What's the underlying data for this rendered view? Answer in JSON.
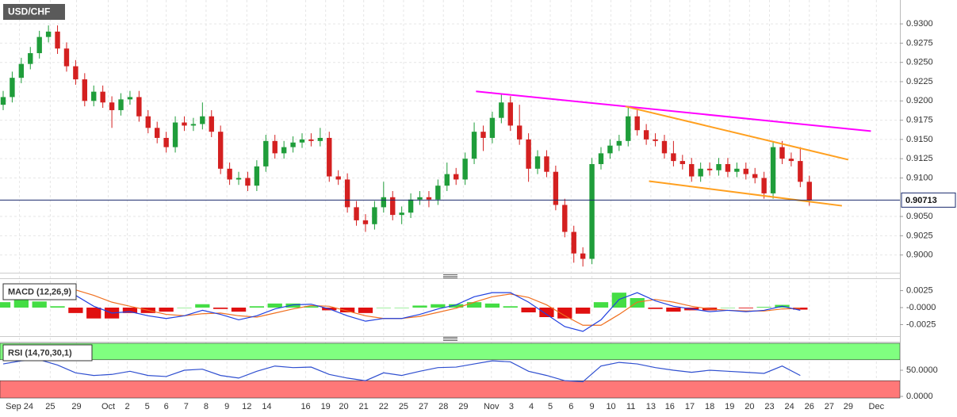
{
  "chart_data": [
    {
      "type": "candlestick",
      "title": "USD/CHF",
      "up_color": "#1f9d3a",
      "down_color": "#d42020",
      "xlim": [
        -0.35,
        99.0
      ],
      "ylim": [
        0.8977,
        0.9331
      ],
      "yticks": [
        {
          "value": 0.93,
          "label": "0.9300"
        },
        {
          "value": 0.9275,
          "label": "0.9275"
        },
        {
          "value": 0.925,
          "label": "0.9250"
        },
        {
          "value": 0.9225,
          "label": "0.9225"
        },
        {
          "value": 0.92,
          "label": "0.9200"
        },
        {
          "value": 0.9175,
          "label": "0.9175"
        },
        {
          "value": 0.915,
          "label": "0.9150"
        },
        {
          "value": 0.9125,
          "label": "0.9125"
        },
        {
          "value": 0.91,
          "label": "0.9100"
        },
        {
          "value": 0.905,
          "label": "0.9050"
        },
        {
          "value": 0.9025,
          "label": "0.9025"
        },
        {
          "value": 0.9,
          "label": "0.9000"
        }
      ],
      "xticks": [
        {
          "value": 1.8,
          "label": "Sep 24"
        },
        {
          "value": 5.2,
          "label": "25"
        },
        {
          "value": 8.1,
          "label": "29"
        },
        {
          "value": 11.6,
          "label": "Oct"
        },
        {
          "value": 13.7,
          "label": "2"
        },
        {
          "value": 15.9,
          "label": "5"
        },
        {
          "value": 18.0,
          "label": "6"
        },
        {
          "value": 20.2,
          "label": "7"
        },
        {
          "value": 22.4,
          "label": "8"
        },
        {
          "value": 24.7,
          "label": "9"
        },
        {
          "value": 26.9,
          "label": "12"
        },
        {
          "value": 29.1,
          "label": "14"
        },
        {
          "value": 33.4,
          "label": "16"
        },
        {
          "value": 35.6,
          "label": "19"
        },
        {
          "value": 37.6,
          "label": "20"
        },
        {
          "value": 39.8,
          "label": "21"
        },
        {
          "value": 42.0,
          "label": "22"
        },
        {
          "value": 44.2,
          "label": "25"
        },
        {
          "value": 46.4,
          "label": "27"
        },
        {
          "value": 48.6,
          "label": "28"
        },
        {
          "value": 50.8,
          "label": "29"
        },
        {
          "value": 53.9,
          "label": "Nov"
        },
        {
          "value": 56.1,
          "label": "3"
        },
        {
          "value": 58.3,
          "label": "4"
        },
        {
          "value": 60.4,
          "label": "5"
        },
        {
          "value": 62.7,
          "label": "6"
        },
        {
          "value": 65.0,
          "label": "9"
        },
        {
          "value": 67.1,
          "label": "10"
        },
        {
          "value": 69.3,
          "label": "11"
        },
        {
          "value": 71.5,
          "label": "13"
        },
        {
          "value": 73.6,
          "label": "16"
        },
        {
          "value": 75.8,
          "label": "17"
        },
        {
          "value": 78.0,
          "label": "18"
        },
        {
          "value": 80.2,
          "label": "19"
        },
        {
          "value": 82.4,
          "label": "20"
        },
        {
          "value": 84.6,
          "label": "23"
        },
        {
          "value": 86.8,
          "label": "24"
        },
        {
          "value": 89.0,
          "label": "26"
        },
        {
          "value": 91.2,
          "label": "27"
        },
        {
          "value": 93.3,
          "label": "29"
        },
        {
          "value": 96.4,
          "label": "Dec"
        }
      ],
      "last_price": 0.90713,
      "last_price_color": "#1a2a6c",
      "trendlines": [
        {
          "color": "#ff00ff",
          "x": [
            52.2,
            95.8
          ],
          "y": [
            0.92124,
            0.91608
          ]
        },
        {
          "color": "#ffa020",
          "x": [
            68.7,
            93.3
          ],
          "y": [
            0.91928,
            0.91237
          ]
        },
        {
          "color": "#ffa020",
          "x": [
            71.3,
            92.6
          ],
          "y": [
            0.90959,
            0.90639
          ]
        }
      ],
      "candles": [
        [
          0.9195,
          0.9213,
          0.9188,
          0.9205
        ],
        [
          0.9205,
          0.9238,
          0.9198,
          0.923
        ],
        [
          0.923,
          0.9256,
          0.9223,
          0.9248
        ],
        [
          0.9248,
          0.927,
          0.9241,
          0.9262
        ],
        [
          0.9262,
          0.9291,
          0.9255,
          0.9283
        ],
        [
          0.9283,
          0.9298,
          0.9276,
          0.929
        ],
        [
          0.929,
          0.9298,
          0.9261,
          0.9268
        ],
        [
          0.9268,
          0.9276,
          0.9238,
          0.9245
        ],
        [
          0.9245,
          0.9253,
          0.9221,
          0.9228
        ],
        [
          0.9228,
          0.9236,
          0.9193,
          0.92
        ],
        [
          0.92,
          0.922,
          0.9193,
          0.9212
        ],
        [
          0.9212,
          0.922,
          0.9191,
          0.9198
        ],
        [
          0.9198,
          0.9206,
          0.9165,
          0.9188
        ],
        [
          0.9188,
          0.921,
          0.9181,
          0.9202
        ],
        [
          0.9202,
          0.9213,
          0.9195,
          0.9205
        ],
        [
          0.9205,
          0.9213,
          0.9173,
          0.918
        ],
        [
          0.918,
          0.9188,
          0.9158,
          0.9165
        ],
        [
          0.9165,
          0.9173,
          0.9145,
          0.9152
        ],
        [
          0.9152,
          0.916,
          0.9133,
          0.914
        ],
        [
          0.914,
          0.918,
          0.9133,
          0.9172
        ],
        [
          0.9172,
          0.918,
          0.9161,
          0.9168
        ],
        [
          0.9168,
          0.9178,
          0.9161,
          0.917
        ],
        [
          0.917,
          0.9198,
          0.9163,
          0.918
        ],
        [
          0.918,
          0.9188,
          0.9153,
          0.916
        ],
        [
          0.916,
          0.9168,
          0.9105,
          0.9112
        ],
        [
          0.9112,
          0.912,
          0.9091,
          0.9098
        ],
        [
          0.9098,
          0.9108,
          0.9091,
          0.91
        ],
        [
          0.91,
          0.9108,
          0.9083,
          0.909
        ],
        [
          0.909,
          0.9123,
          0.9083,
          0.9115
        ],
        [
          0.9115,
          0.9156,
          0.9108,
          0.9148
        ],
        [
          0.9148,
          0.9156,
          0.9125,
          0.9132
        ],
        [
          0.9132,
          0.9148,
          0.9125,
          0.914
        ],
        [
          0.914,
          0.9154,
          0.9133,
          0.9146
        ],
        [
          0.9146,
          0.9158,
          0.9139,
          0.915
        ],
        [
          0.915,
          0.9158,
          0.9141,
          0.9148
        ],
        [
          0.9148,
          0.9165,
          0.9141,
          0.9152
        ],
        [
          0.9152,
          0.916,
          0.9095,
          0.9102
        ],
        [
          0.9102,
          0.911,
          0.9091,
          0.9098
        ],
        [
          0.9098,
          0.9106,
          0.9055,
          0.9062
        ],
        [
          0.9062,
          0.907,
          0.9038,
          0.9045
        ],
        [
          0.9045,
          0.9053,
          0.903,
          0.904
        ],
        [
          0.904,
          0.907,
          0.9033,
          0.9062
        ],
        [
          0.9062,
          0.9095,
          0.9055,
          0.9075
        ],
        [
          0.9075,
          0.9083,
          0.9045,
          0.9052
        ],
        [
          0.9052,
          0.9063,
          0.904,
          0.9055
        ],
        [
          0.9055,
          0.908,
          0.9048,
          0.9072
        ],
        [
          0.9072,
          0.9083,
          0.9065,
          0.9075
        ],
        [
          0.9075,
          0.9083,
          0.9062,
          0.9072
        ],
        [
          0.9072,
          0.9098,
          0.9065,
          0.909
        ],
        [
          0.909,
          0.912,
          0.9083,
          0.9105
        ],
        [
          0.9105,
          0.9113,
          0.9091,
          0.9098
        ],
        [
          0.9098,
          0.9133,
          0.9091,
          0.9125
        ],
        [
          0.9125,
          0.9172,
          0.9118,
          0.916
        ],
        [
          0.916,
          0.9168,
          0.9135,
          0.9152
        ],
        [
          0.9152,
          0.9186,
          0.9145,
          0.9178
        ],
        [
          0.9178,
          0.9208,
          0.9171,
          0.9198
        ],
        [
          0.9198,
          0.9206,
          0.9161,
          0.9168
        ],
        [
          0.9168,
          0.9195,
          0.9143,
          0.915
        ],
        [
          0.915,
          0.9158,
          0.9095,
          0.9112
        ],
        [
          0.9112,
          0.9136,
          0.9105,
          0.9128
        ],
        [
          0.9128,
          0.9136,
          0.9101,
          0.9108
        ],
        [
          0.9108,
          0.9116,
          0.9058,
          0.9065
        ],
        [
          0.9065,
          0.9073,
          0.9023,
          0.903
        ],
        [
          0.903,
          0.9038,
          0.899,
          0.9002
        ],
        [
          0.9002,
          0.901,
          0.8985,
          0.8995
        ],
        [
          0.8995,
          0.9126,
          0.8988,
          0.9118
        ],
        [
          0.9118,
          0.914,
          0.9111,
          0.9132
        ],
        [
          0.9132,
          0.915,
          0.9125,
          0.9142
        ],
        [
          0.9142,
          0.9156,
          0.9135,
          0.9148
        ],
        [
          0.9148,
          0.9192,
          0.9141,
          0.918
        ],
        [
          0.918,
          0.9188,
          0.9155,
          0.9162
        ],
        [
          0.9162,
          0.917,
          0.9143,
          0.915
        ],
        [
          0.915,
          0.9158,
          0.9141,
          0.9148
        ],
        [
          0.9148,
          0.9156,
          0.9125,
          0.9132
        ],
        [
          0.9132,
          0.9148,
          0.9115,
          0.9122
        ],
        [
          0.9122,
          0.913,
          0.9111,
          0.9118
        ],
        [
          0.9118,
          0.9126,
          0.9095,
          0.9102
        ],
        [
          0.9102,
          0.912,
          0.9095,
          0.9112
        ],
        [
          0.9112,
          0.912,
          0.9103,
          0.911
        ],
        [
          0.911,
          0.9126,
          0.9103,
          0.9118
        ],
        [
          0.9118,
          0.9126,
          0.9101,
          0.9108
        ],
        [
          0.9108,
          0.912,
          0.9101,
          0.9112
        ],
        [
          0.9112,
          0.912,
          0.9098,
          0.9105
        ],
        [
          0.9105,
          0.9113,
          0.9093,
          0.91
        ],
        [
          0.91,
          0.9108,
          0.9073,
          0.908
        ],
        [
          0.908,
          0.9148,
          0.9073,
          0.914
        ],
        [
          0.914,
          0.9148,
          0.9118,
          0.9125
        ],
        [
          0.9125,
          0.9133,
          0.9115,
          0.9122
        ],
        [
          0.9122,
          0.914,
          0.9088,
          0.9095
        ],
        [
          0.9095,
          0.9103,
          0.9064,
          0.9071
        ]
      ]
    },
    {
      "type": "macd",
      "title": "MACD (12,26,9)",
      "ylim": [
        -0.0042,
        0.0042
      ],
      "yticks": [
        {
          "value": 0.0025,
          "label": "0.0025"
        },
        {
          "value": 0,
          "label": "-0.0000"
        },
        {
          "value": -0.0025,
          "label": "-0.0025"
        }
      ],
      "x": [
        0,
        2,
        4,
        6,
        8,
        10,
        12,
        14,
        16,
        18,
        20,
        22,
        24,
        26,
        28,
        30,
        32,
        34,
        36,
        38,
        40,
        42,
        44,
        46,
        48,
        50,
        52,
        54,
        56,
        58,
        60,
        62,
        64,
        66,
        68,
        70,
        72,
        74,
        76,
        78,
        80,
        82,
        84,
        86,
        88
      ],
      "macd": [
        0.002,
        0.003,
        0.0033,
        0.003,
        0.0018,
        0.0002,
        -0.0008,
        -0.0006,
        -0.0012,
        -0.0016,
        -0.0012,
        -0.0004,
        -0.001,
        -0.0018,
        -0.0012,
        -0.0002,
        0.0004,
        0.0005,
        -0.0002,
        -0.0012,
        -0.002,
        -0.0016,
        -0.0016,
        -0.001,
        -0.0002,
        0.0004,
        0.0016,
        0.0022,
        0.0022,
        0.0008,
        -0.001,
        -0.0028,
        -0.0035,
        -0.0018,
        0.0012,
        0.0022,
        0.001,
        0.0002,
        -0.0002,
        -0.0006,
        -0.0004,
        -0.0006,
        -0.0004,
        0.0002,
        -0.0004
      ],
      "signal": [
        0.0012,
        0.0018,
        0.0024,
        0.0028,
        0.0026,
        0.0018,
        0.0008,
        0.0002,
        -0.0004,
        -0.001,
        -0.0012,
        -0.0009,
        -0.0008,
        -0.0012,
        -0.0014,
        -0.0008,
        -0.0002,
        0.0003,
        0.0002,
        -0.0005,
        -0.0012,
        -0.0016,
        -0.0016,
        -0.0013,
        -0.0007,
        -0.0001,
        0.0008,
        0.0016,
        0.002,
        0.0015,
        0.0004,
        -0.0012,
        -0.0026,
        -0.0026,
        -0.001,
        0.0008,
        0.0012,
        0.0008,
        0.0002,
        -0.0002,
        -0.0004,
        -0.0005,
        -0.0005,
        -0.0002,
        -0.0001
      ],
      "histogram": [
        0.0008,
        0.0012,
        0.0009,
        0.0002,
        -0.0008,
        -0.0016,
        -0.0016,
        -0.0008,
        -0.0008,
        -0.0006,
        0,
        0.0005,
        -0.0002,
        -0.0006,
        0.0002,
        0.0006,
        0.0006,
        0.0002,
        -0.0004,
        -0.0007,
        -0.0008,
        0,
        0,
        0.0003,
        0.0005,
        0.0005,
        0.0008,
        0.0006,
        0.0002,
        -0.0007,
        -0.0014,
        -0.0016,
        -0.0009,
        0.0008,
        0.0022,
        0.0014,
        -0.0002,
        -0.0006,
        -0.0004,
        -0.0004,
        0,
        -0.0001,
        0.0001,
        0.0004,
        -0.0003
      ],
      "macd_color": "#2040e0",
      "signal_color": "#f07020",
      "up_color": "#44dd44",
      "down_color": "#e01010"
    },
    {
      "type": "rsi",
      "title": "RSI (14,70,30,1)",
      "ylim": [
        -3,
        103
      ],
      "yticks": [
        {
          "value": 50,
          "label": "50.0000"
        },
        {
          "value": 0,
          "label": "0.0000"
        }
      ],
      "levels": [
        70,
        30
      ],
      "overbought_color": "#80ff80",
      "oversold_color": "#ff7878",
      "color": "#2f4fd0",
      "x": [
        0,
        2,
        4,
        6,
        8,
        10,
        12,
        14,
        16,
        18,
        20,
        22,
        24,
        26,
        28,
        30,
        32,
        34,
        36,
        38,
        40,
        42,
        44,
        46,
        48,
        50,
        52,
        54,
        56,
        58,
        60,
        62,
        64,
        66,
        68,
        70,
        72,
        74,
        76,
        78,
        80,
        82,
        84,
        86,
        88
      ],
      "values": [
        62,
        68,
        70,
        60,
        45,
        40,
        42,
        48,
        40,
        38,
        50,
        52,
        40,
        35,
        48,
        58,
        55,
        56,
        42,
        35,
        30,
        45,
        40,
        48,
        55,
        56,
        62,
        68,
        66,
        48,
        40,
        30,
        28,
        58,
        65,
        62,
        55,
        50,
        46,
        50,
        48,
        46,
        44,
        58,
        40
      ]
    }
  ]
}
